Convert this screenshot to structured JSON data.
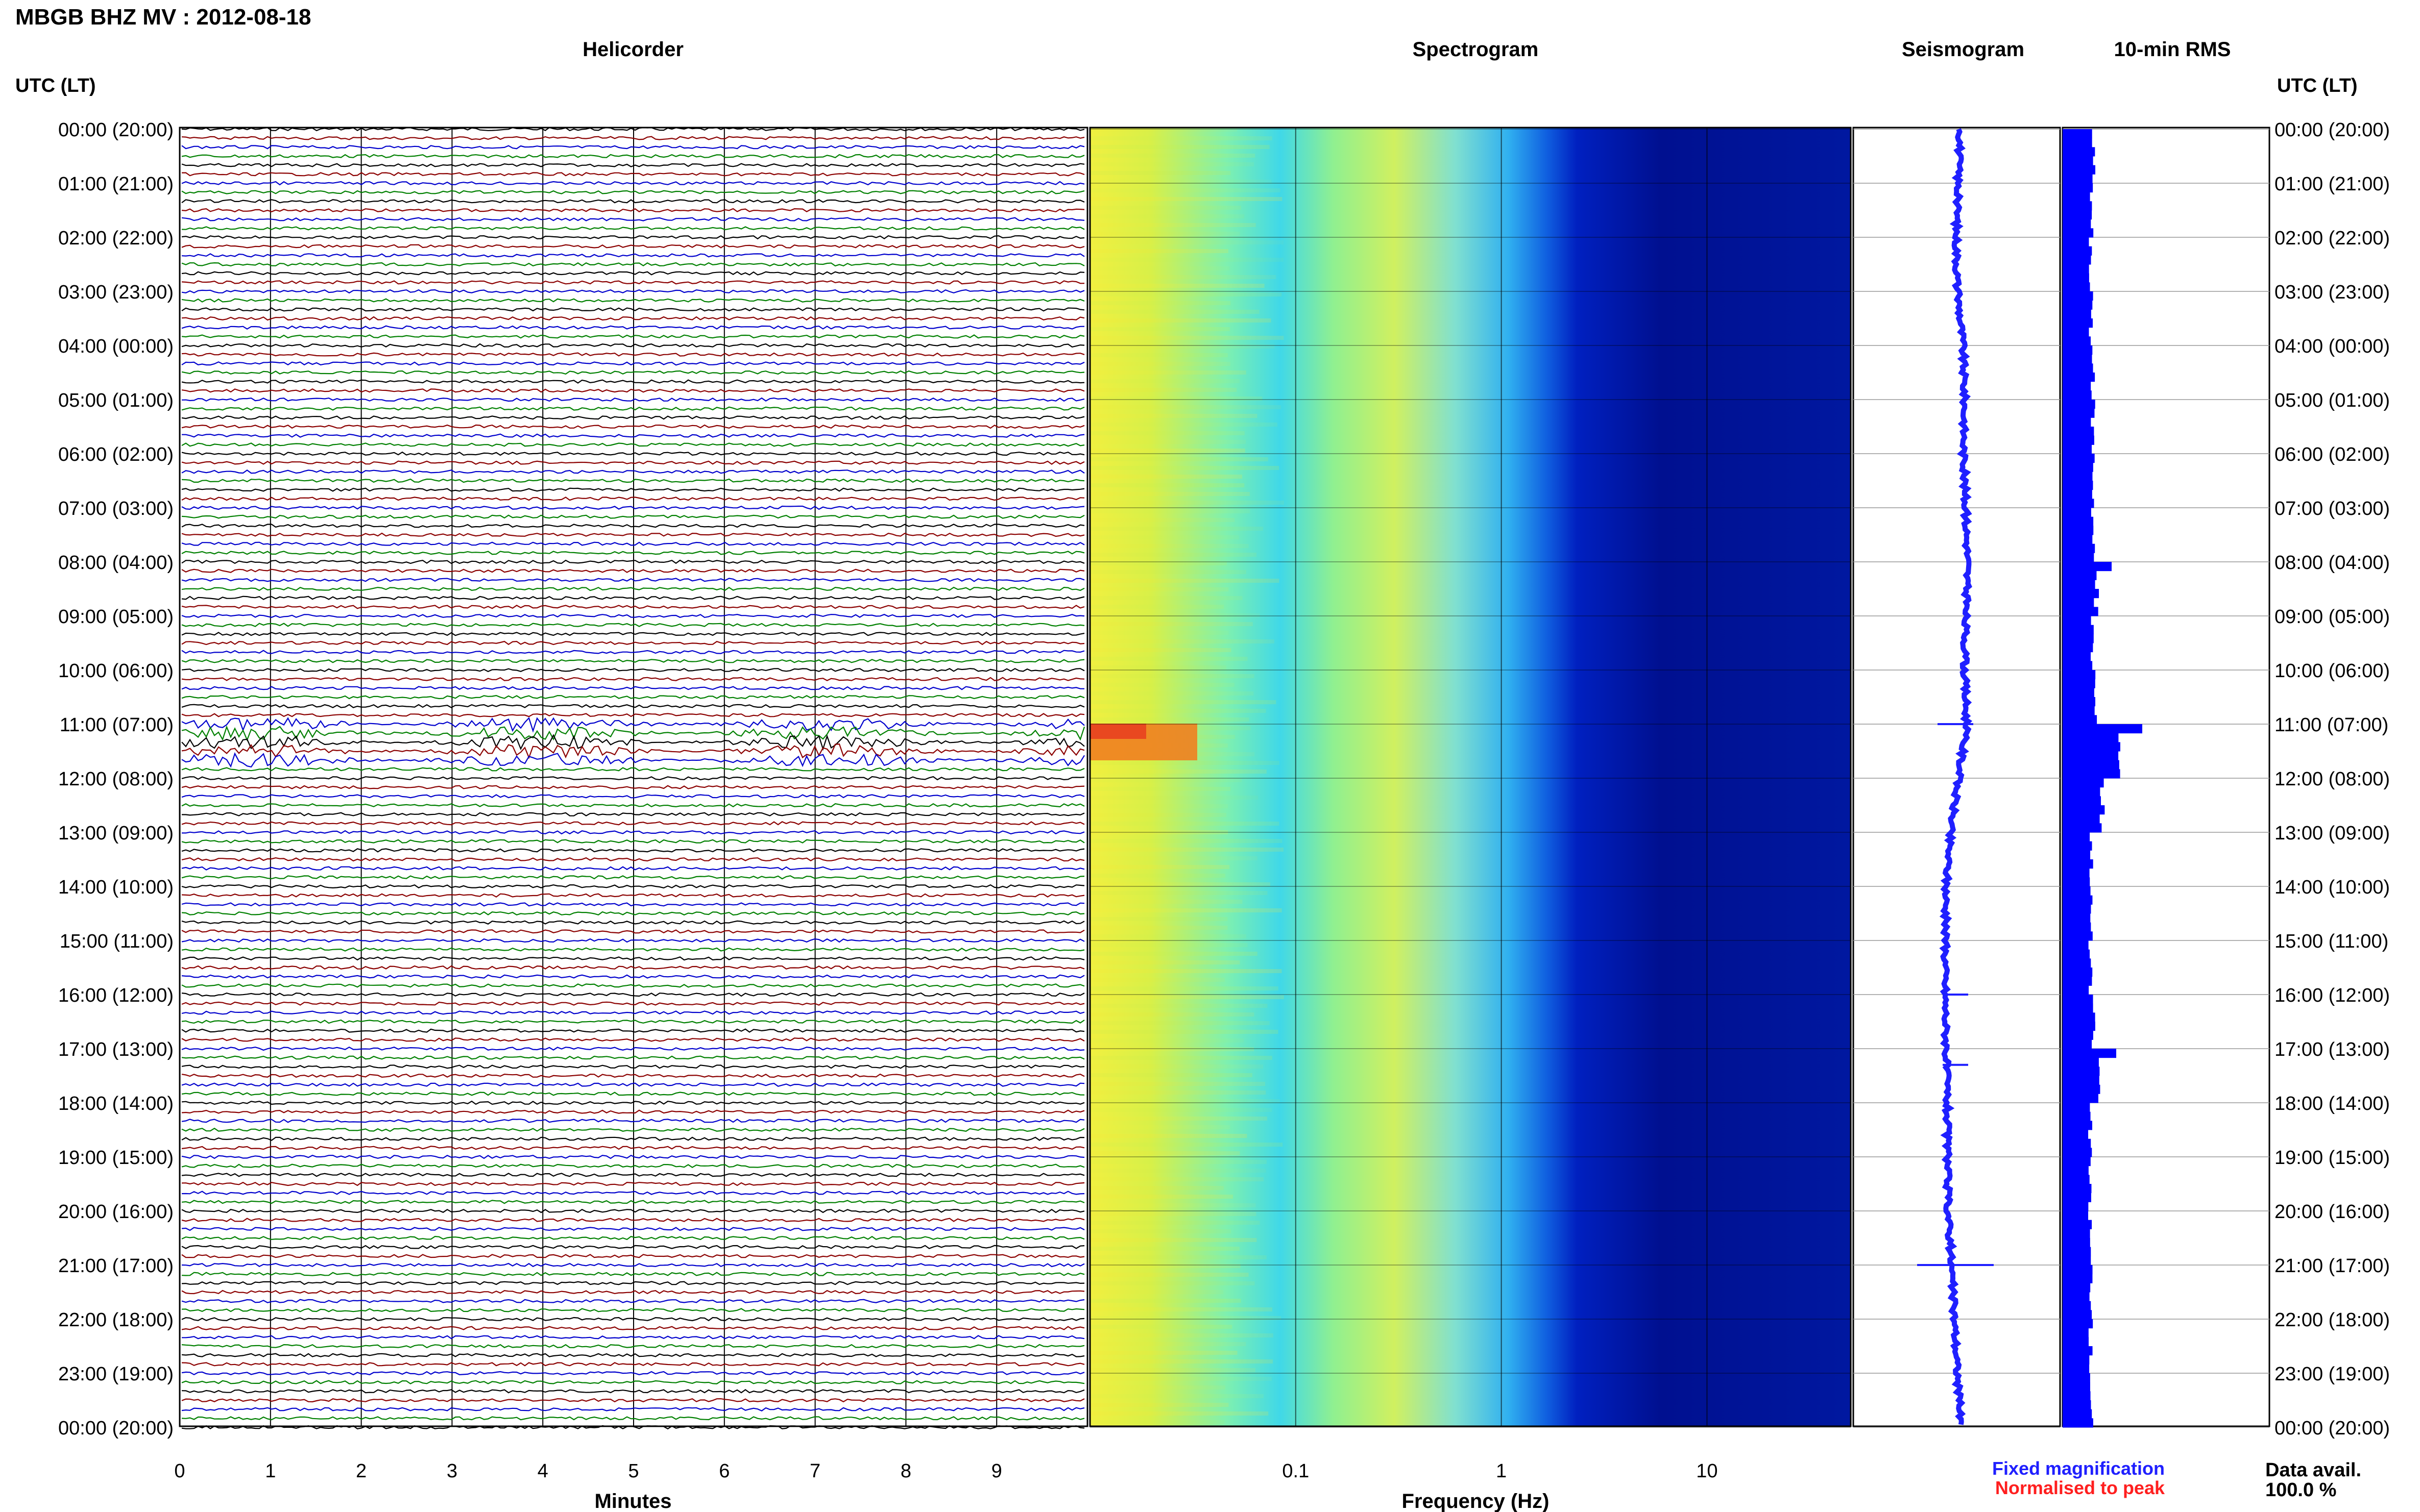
{
  "header": {
    "title": "MBGB BHZ MV : 2012-08-18",
    "panel_titles": [
      "Helicorder",
      "Spectrogram",
      "Seismogram",
      "10-min RMS"
    ],
    "axis_left_label": "UTC (LT)",
    "axis_right_label": "UTC (LT)"
  },
  "footer": {
    "legend_fixed": "Fixed magnification",
    "legend_normalised": "Normalised to peak",
    "data_avail_label": "Data avail.",
    "data_avail_value": "100.0 %"
  },
  "colors": {
    "trace_colors": [
      "#000000",
      "#8b0000",
      "#0000cd",
      "#008000"
    ],
    "seismogram": "#1f1fff",
    "rms_bars": "#0000ff",
    "legend_fixed": "#1f1fff",
    "legend_normalised": "#ff1f1f"
  },
  "chart_data": [
    {
      "type": "line",
      "name": "helicorder",
      "title": "Helicorder",
      "xlabel": "Minutes",
      "x_ticks": [
        "0",
        "1",
        "2",
        "3",
        "4",
        "5",
        "6",
        "7",
        "8",
        "9"
      ],
      "xlim": [
        0,
        10
      ],
      "y_tick_labels": [
        "00:00 (20:00)",
        "01:00 (21:00)",
        "02:00 (22:00)",
        "03:00 (23:00)",
        "04:00 (00:00)",
        "05:00 (01:00)",
        "06:00 (02:00)",
        "07:00 (03:00)",
        "08:00 (04:00)",
        "09:00 (05:00)",
        "10:00 (06:00)",
        "11:00 (07:00)",
        "12:00 (08:00)",
        "13:00 (09:00)",
        "14:00 (10:00)",
        "15:00 (11:00)",
        "16:00 (12:00)",
        "17:00 (13:00)",
        "18:00 (14:00)",
        "19:00 (15:00)",
        "20:00 (16:00)",
        "21:00 (17:00)",
        "22:00 (18:00)",
        "23:00 (19:00)",
        "00:00 (20:00)"
      ],
      "rows_per_hour": 6,
      "grid": true
    },
    {
      "type": "heatmap",
      "name": "spectrogram",
      "title": "Spectrogram",
      "xlabel": "Frequency (Hz)",
      "x_scale": "log",
      "xlim": [
        0.01,
        50
      ],
      "x_ticks": [
        "0.1",
        "1",
        "10"
      ],
      "grid": true
    },
    {
      "type": "line",
      "name": "seismogram",
      "title": "Seismogram",
      "grid": true
    },
    {
      "type": "bar",
      "name": "10-min-rms",
      "title": "10-min RMS",
      "orientation": "horizontal",
      "hourly_rms_relative": [
        1.0,
        0.95,
        0.9,
        0.92,
        0.98,
        1.0,
        1.02,
        1.0,
        1.1,
        0.97,
        1.05,
        1.9,
        1.3,
        0.95,
        0.92,
        0.9,
        1.0,
        1.2,
        0.9,
        0.88,
        0.9,
        0.95,
        0.92,
        0.94
      ],
      "peaks": [
        {
          "time": "08:00",
          "value": 1.6
        },
        {
          "time": "11:00",
          "value": 2.6
        },
        {
          "time": "17:00",
          "value": 1.75
        }
      ],
      "grid": true
    }
  ]
}
